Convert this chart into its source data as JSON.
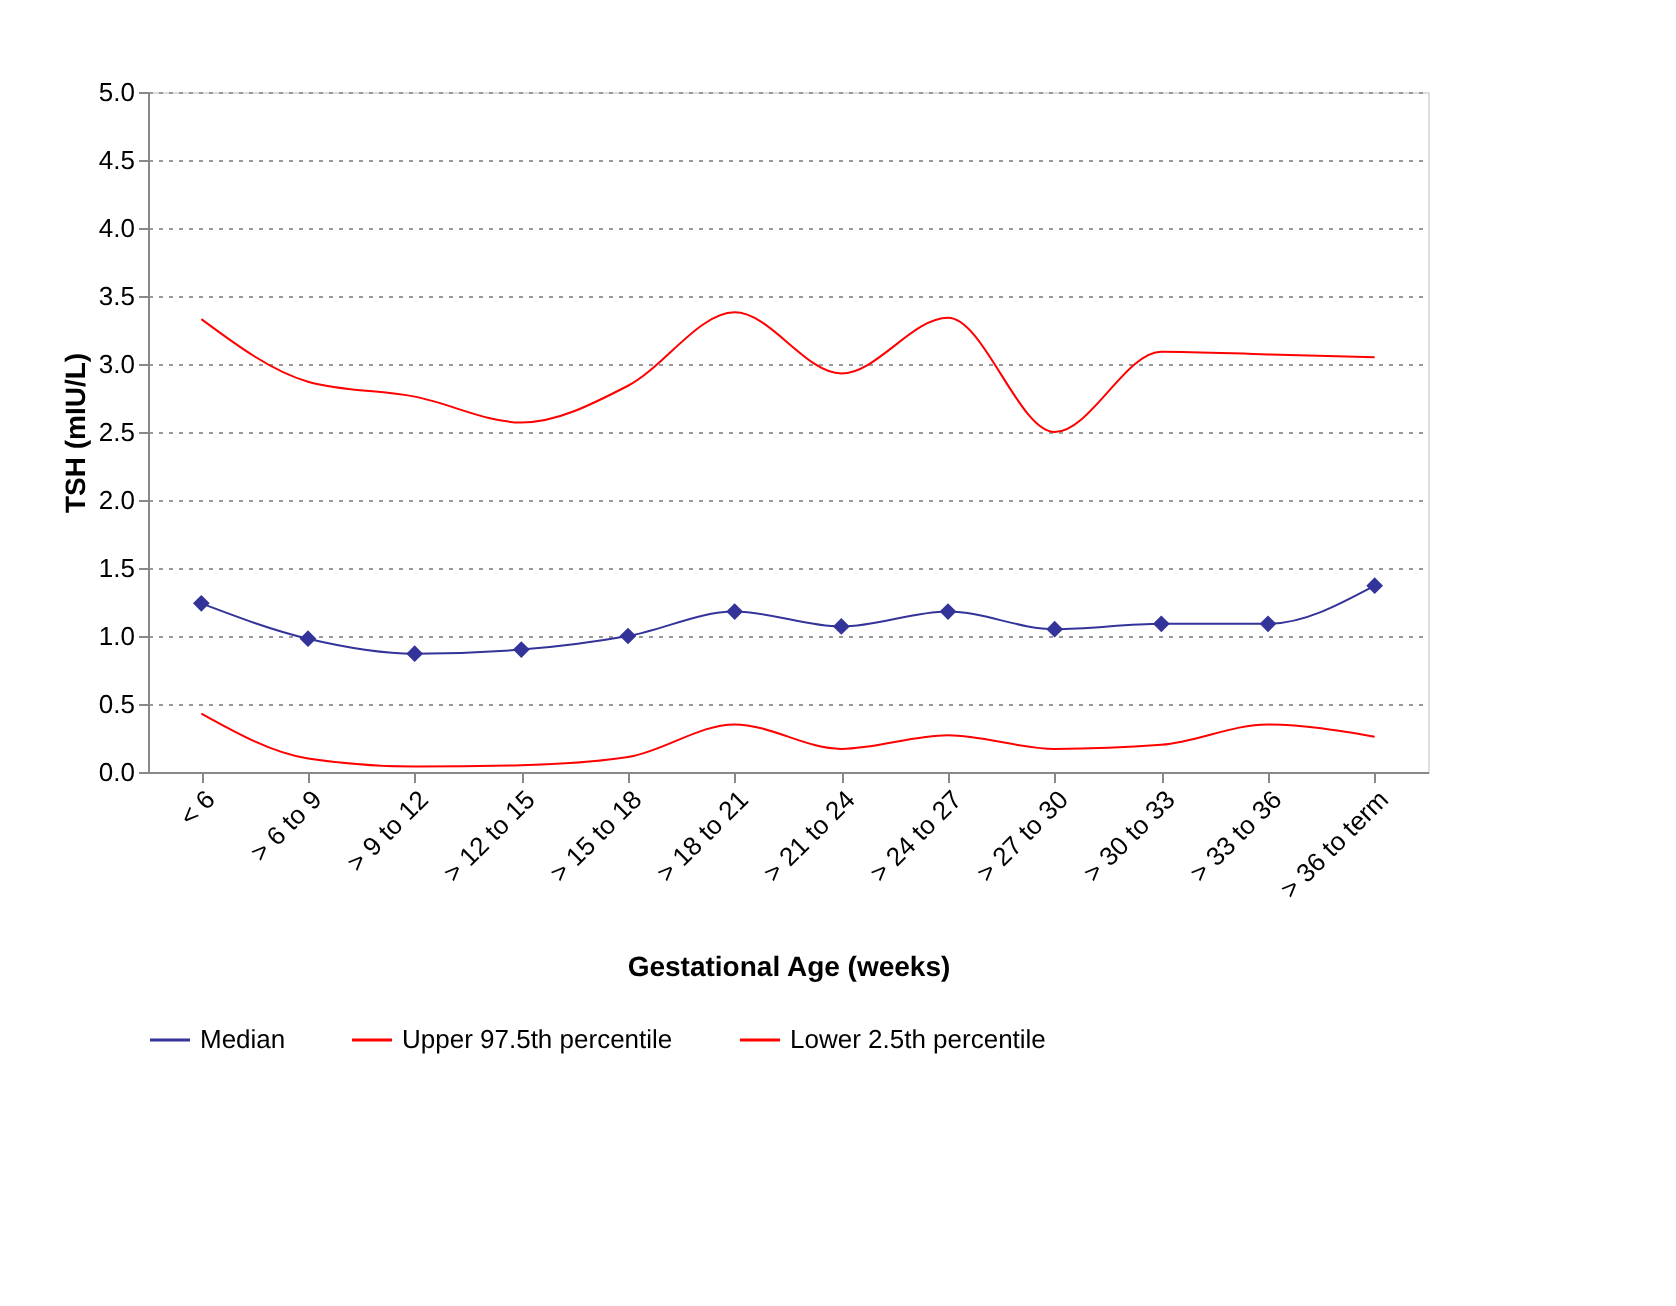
{
  "chart_data": {
    "type": "line",
    "xlabel": "Gestational Age (weeks)",
    "ylabel": "TSH (mIU/L)",
    "categories": [
      "< 6",
      "> 6 to 9",
      "> 9 to 12",
      "> 12 to 15",
      "> 15 to 18",
      "> 18 to 21",
      "> 21 to 24",
      "> 24 to 27",
      "> 27 to 30",
      "> 30 to 33",
      "> 33 to 36",
      "> 36 to term"
    ],
    "series": [
      {
        "name": "Median",
        "color": "#333399",
        "marker": "diamond",
        "values": [
          1.24,
          0.98,
          0.87,
          0.9,
          1.0,
          1.18,
          1.07,
          1.18,
          1.05,
          1.09,
          1.09,
          1.37
        ]
      },
      {
        "name": "Upper 97.5th percentile",
        "color": "#ff0000",
        "marker": "none",
        "values": [
          3.33,
          2.87,
          2.76,
          2.57,
          2.84,
          3.38,
          2.93,
          3.34,
          2.5,
          3.09,
          3.07,
          3.05
        ]
      },
      {
        "name": "Lower 2.5th percentile",
        "color": "#ff0000",
        "marker": "none",
        "values": [
          0.43,
          0.1,
          0.04,
          0.05,
          0.11,
          0.35,
          0.17,
          0.27,
          0.17,
          0.2,
          0.35,
          0.26
        ]
      }
    ],
    "ylim": [
      0,
      5
    ],
    "yticks": [
      {
        "value": 0,
        "label": "0.0"
      },
      0.5,
      {
        "value": 1,
        "label": "1.0"
      },
      1.5,
      {
        "value": 2,
        "label": "2.0"
      },
      2.5,
      {
        "value": 3,
        "label": "3.0"
      },
      3.5,
      {
        "value": 4,
        "label": "4.0"
      },
      4.5,
      {
        "value": 5,
        "label": "5.0"
      }
    ],
    "grid": "y",
    "legend": "bottom",
    "line_style": "solid"
  }
}
